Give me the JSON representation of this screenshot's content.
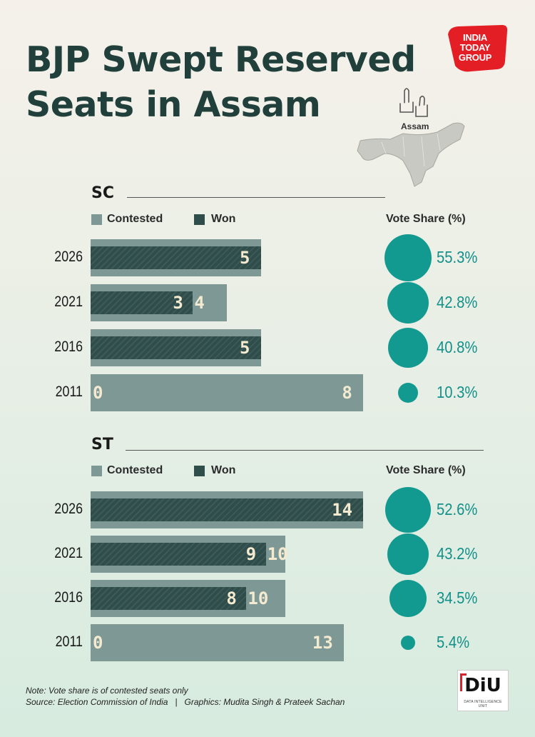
{
  "title": "BJP Swept Reserved Seats in Assam",
  "brand": {
    "logo_line1": "INDIA",
    "logo_line2": "TODAY",
    "logo_line3": "GROUP",
    "logo_color": "#e31e24"
  },
  "map_label": "Assam",
  "colors": {
    "contested": "#7d9895",
    "won": "#2f4d4a",
    "bubble": "#139a90",
    "value_text": "#f3ead0"
  },
  "legend": {
    "contested": "Contested",
    "won": "Won",
    "vote_share": "Vote Share (%)"
  },
  "chart_data": [
    {
      "type": "bar",
      "title": "SC",
      "categories": [
        "2026",
        "2021",
        "2016",
        "2011"
      ],
      "series": [
        {
          "name": "Contested",
          "values": [
            5,
            4,
            5,
            8
          ]
        },
        {
          "name": "Won",
          "values": [
            5,
            3,
            5,
            0
          ]
        }
      ],
      "vote_share": {
        "name": "Vote Share (%)",
        "values": [
          55.3,
          42.8,
          40.8,
          10.3
        ],
        "labels": [
          "55.3%",
          "42.8%",
          "40.8%",
          "10.3%"
        ]
      }
    },
    {
      "type": "bar",
      "title": "ST",
      "categories": [
        "2026",
        "2021",
        "2016",
        "2011"
      ],
      "series": [
        {
          "name": "Contested",
          "values": [
            14,
            10,
            10,
            13
          ]
        },
        {
          "name": "Won",
          "values": [
            14,
            9,
            8,
            0
          ]
        }
      ],
      "vote_share": {
        "name": "Vote Share (%)",
        "values": [
          52.6,
          43.2,
          34.5,
          5.4
        ],
        "labels": [
          "52.6%",
          "43.2%",
          "34.5%",
          "5.4%"
        ]
      }
    }
  ],
  "notes": {
    "note": "Note: Vote share is of contested seats only",
    "source": "Source: Election Commission of India   |   Graphics: Mudita Singh & Prateek Sachan"
  },
  "diu": {
    "text": "DiU",
    "sub": "DATA INTELLIGENCE UNIT"
  }
}
